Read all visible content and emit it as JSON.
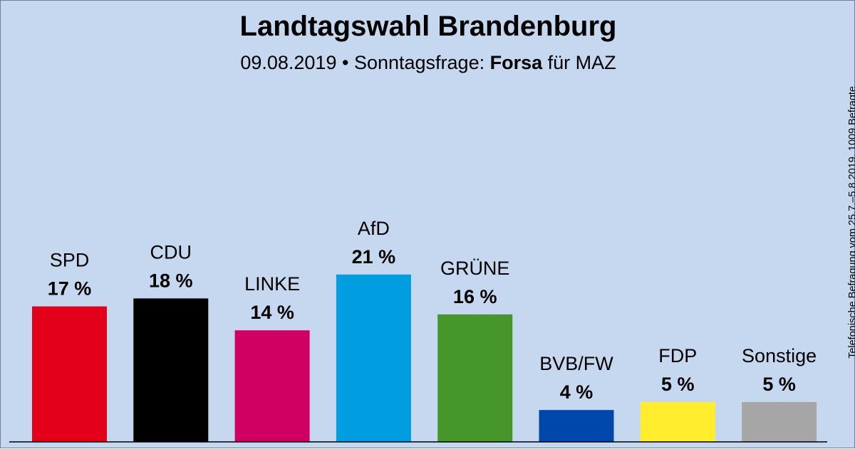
{
  "title": "Landtagswahl Brandenburg",
  "subtitle": {
    "date": "09.08.2019",
    "separator": "•",
    "question": "Sonntagsfrage:",
    "institute": "Forsa",
    "client": "für MAZ"
  },
  "source_note": "Telefonische Befragung vom 25.7.–5.8.2019, 1009 Befragte",
  "value_suffix": " %",
  "chart_data": {
    "type": "bar",
    "title": "Landtagswahl Brandenburg",
    "categories": [
      "SPD",
      "CDU",
      "LINKE",
      "AfD",
      "GRÜNE",
      "BVB/FW",
      "FDP",
      "Sonstige"
    ],
    "values": [
      17,
      18,
      14,
      21,
      16,
      4,
      5,
      5
    ],
    "colors": [
      "#e3001b",
      "#000000",
      "#cf0062",
      "#009ee0",
      "#46962b",
      "#0047ab",
      "#ffed2e",
      "#a6a6a6"
    ],
    "xlabel": "",
    "ylabel": "",
    "grid": false,
    "legend": "none"
  }
}
